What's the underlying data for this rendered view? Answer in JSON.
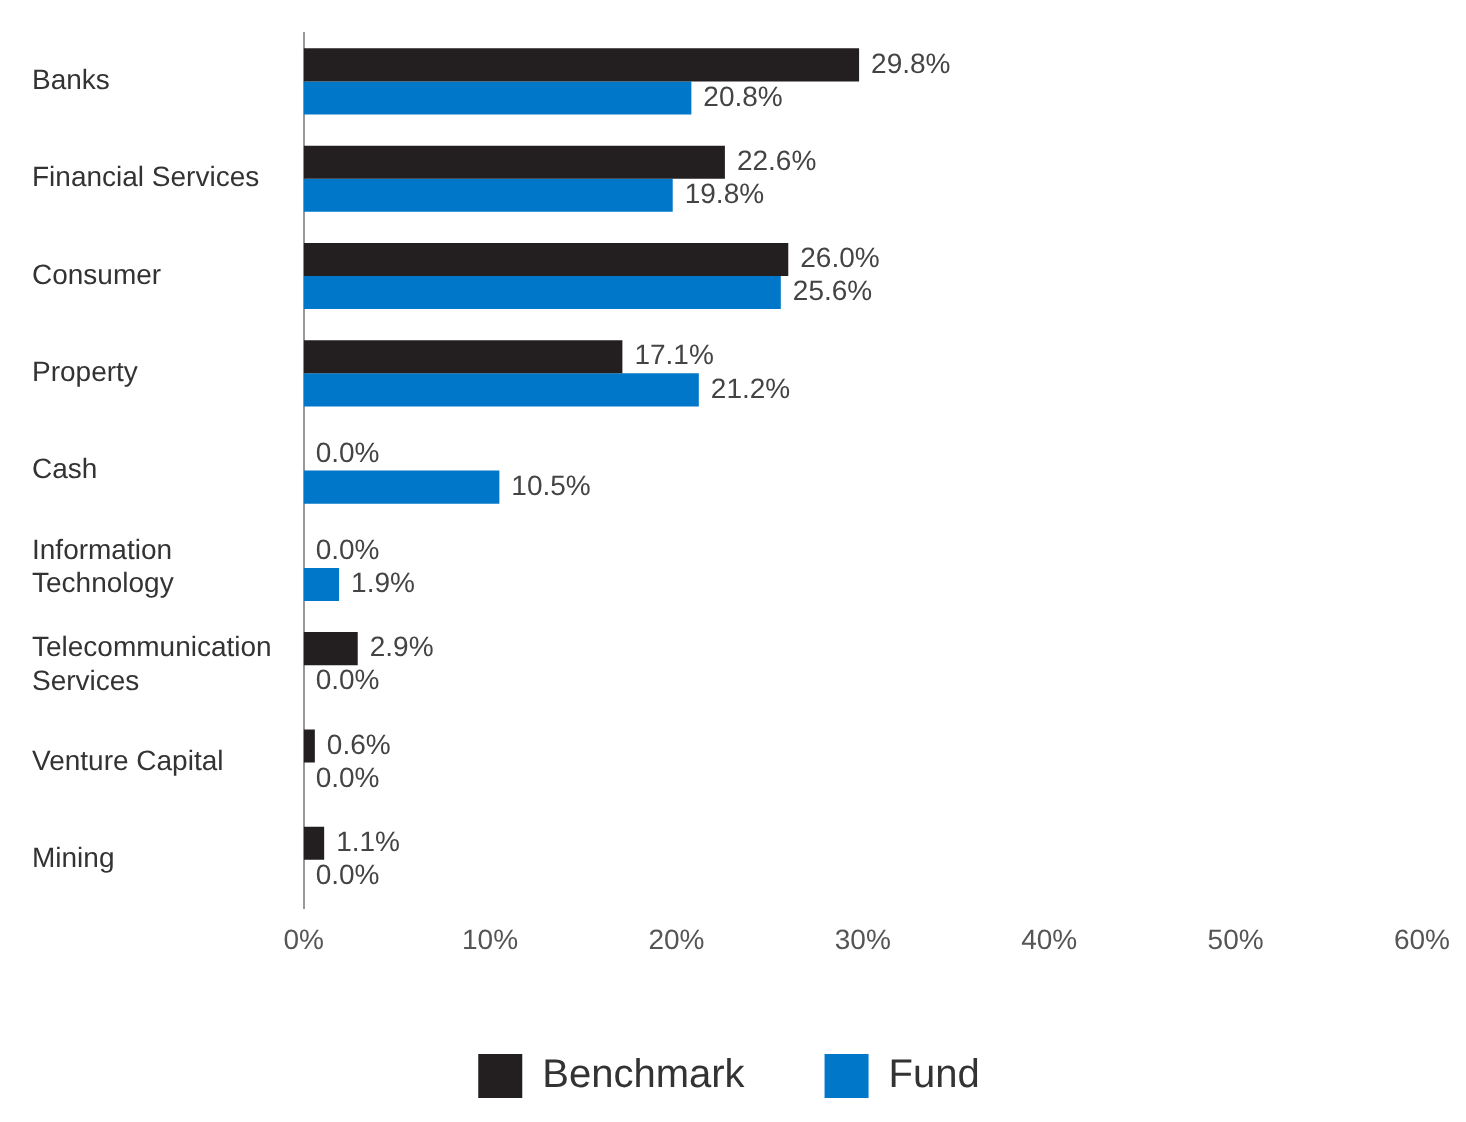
{
  "chart_data": {
    "type": "bar",
    "orientation": "horizontal",
    "categories": [
      "Banks",
      "Financial Services",
      "Consumer",
      "Property",
      "Cash",
      "Information Technology",
      "Telecommunication Services",
      "Venture Capital",
      "Mining"
    ],
    "series": [
      {
        "name": "Benchmark",
        "color": "#231f20",
        "values": [
          29.8,
          22.6,
          26.0,
          17.1,
          0.0,
          0.0,
          2.9,
          0.6,
          1.1
        ],
        "value_labels": [
          "29.8%",
          "22.6%",
          "26.0%",
          "17.1%",
          "0.0%",
          "0.0%",
          "2.9%",
          "0.6%",
          "1.1%"
        ]
      },
      {
        "name": "Fund",
        "color": "#0077c8",
        "values": [
          20.8,
          19.8,
          25.6,
          21.2,
          10.5,
          1.9,
          0.0,
          0.0,
          0.0
        ],
        "value_labels": [
          "20.8%",
          "19.8%",
          "25.6%",
          "21.2%",
          "10.5%",
          "1.9%",
          "0.0%",
          "0.0%",
          "0.0%"
        ]
      }
    ],
    "xlim": [
      0,
      60
    ],
    "xticks": [
      {
        "value": 0,
        "label": "0%"
      },
      {
        "value": 10,
        "label": "10%"
      },
      {
        "value": 20,
        "label": "20%"
      },
      {
        "value": 30,
        "label": "30%"
      },
      {
        "value": 40,
        "label": "40%"
      },
      {
        "value": 50,
        "label": "50%"
      },
      {
        "value": 60,
        "label": "60%"
      }
    ],
    "grid": false,
    "legend": "bottom"
  }
}
